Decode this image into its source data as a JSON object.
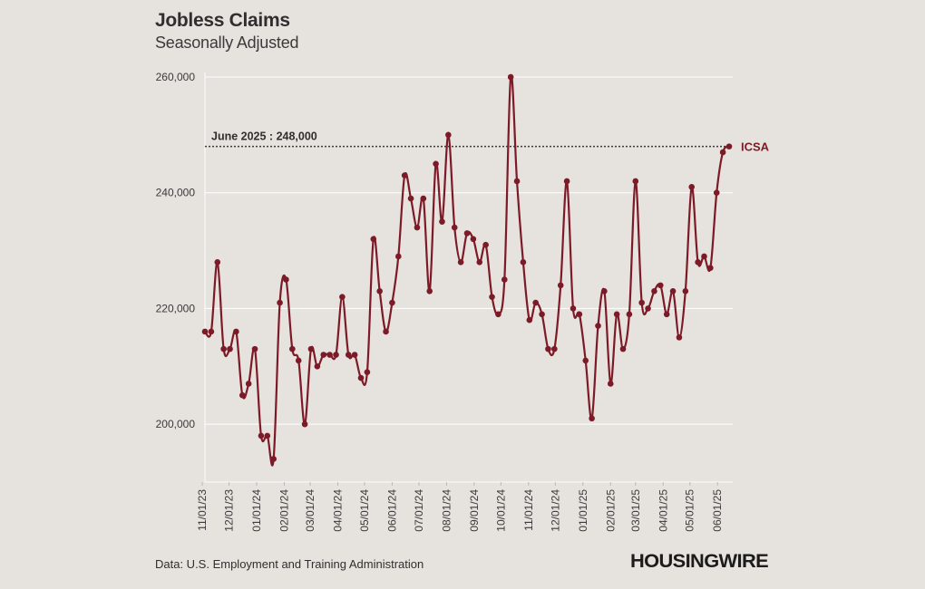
{
  "header": {
    "title": "Jobless Claims",
    "subtitle": "Seasonally Adjusted"
  },
  "footer": {
    "source": "Data: U.S. Employment and Training Administration",
    "logo": "HOUSINGWIRE"
  },
  "colors": {
    "series": "#7d1a27",
    "background": "#e6e2dd",
    "grid": "#ffffff",
    "text": "#2f2f2f"
  },
  "chart_data": {
    "type": "line",
    "title": "Jobless Claims",
    "subtitle": "Seasonally Adjusted",
    "xlabel": "",
    "ylabel": "",
    "ylim": [
      190000,
      260000
    ],
    "yticks": [
      200000,
      220000,
      240000,
      260000
    ],
    "ytick_labels": [
      "200,000",
      "220,000",
      "240,000",
      "260,000"
    ],
    "xtick_labels": [
      "11/01/23",
      "12/01/23",
      "01/01/24",
      "02/01/24",
      "03/01/24",
      "04/01/24",
      "05/01/24",
      "06/01/24",
      "07/01/24",
      "08/01/24",
      "09/01/24",
      "10/01/24",
      "11/01/24",
      "12/01/24",
      "01/01/25",
      "02/01/25",
      "03/01/25",
      "04/01/25",
      "05/01/25",
      "06/01/25"
    ],
    "x_first_date": "2023-11-04",
    "x_step_days": 7,
    "grid": true,
    "series": [
      {
        "name": "ICSA",
        "values": [
          216000,
          216000,
          228000,
          213000,
          213000,
          216000,
          205000,
          207000,
          213000,
          198000,
          198000,
          194000,
          221000,
          225000,
          213000,
          211000,
          200000,
          213000,
          210000,
          212000,
          212000,
          212000,
          222000,
          212000,
          212000,
          208000,
          209000,
          232000,
          223000,
          216000,
          221000,
          229000,
          243000,
          239000,
          234000,
          239000,
          223000,
          245000,
          235000,
          250000,
          234000,
          228000,
          233000,
          232000,
          228000,
          231000,
          222000,
          219000,
          225000,
          260000,
          242000,
          228000,
          218000,
          221000,
          219000,
          213000,
          213000,
          224000,
          242000,
          220000,
          219000,
          211000,
          201000,
          217000,
          223000,
          207000,
          219000,
          213000,
          219000,
          242000,
          221000,
          220000,
          223000,
          224000,
          219000,
          223000,
          215000,
          223000,
          241000,
          228000,
          229000,
          227000,
          240000,
          247000,
          248000
        ]
      }
    ],
    "reference_line": {
      "value": 248000,
      "label": "June 2025 : 248,000"
    },
    "series_end_label": "ICSA"
  }
}
